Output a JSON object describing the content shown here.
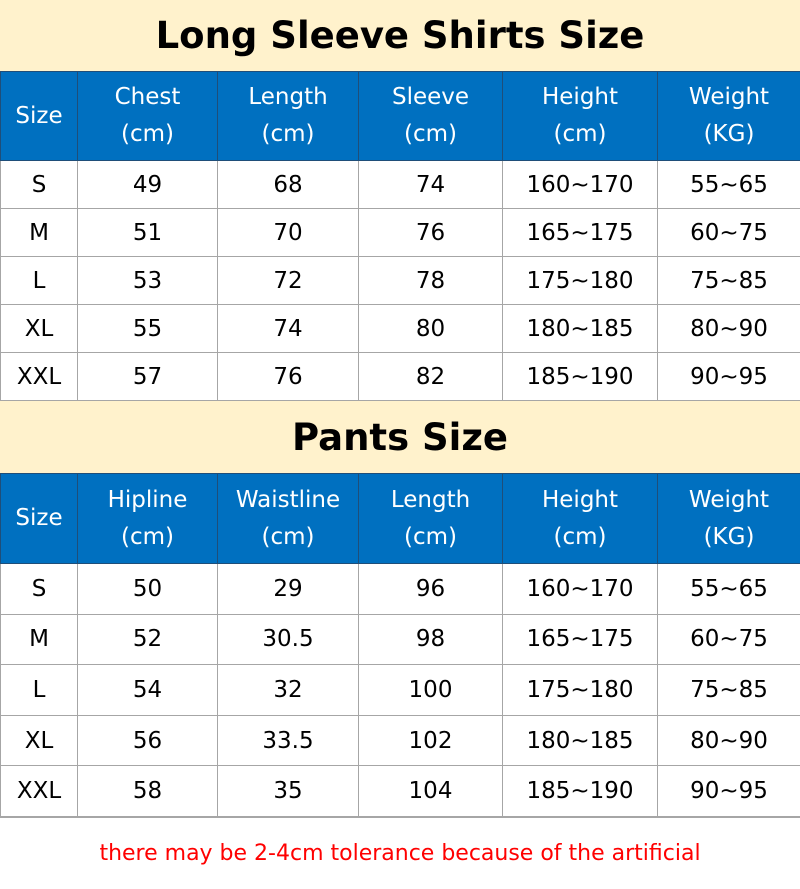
{
  "shirts": {
    "title": "Long Sleeve Shirts Size",
    "headers": [
      [
        "Size",
        ""
      ],
      [
        "Chest",
        "(cm)"
      ],
      [
        "Length",
        "(cm)"
      ],
      [
        "Sleeve",
        "(cm)"
      ],
      [
        "Height",
        "(cm)"
      ],
      [
        "Weight",
        "(KG)"
      ]
    ],
    "rows": [
      [
        "S",
        "49",
        "68",
        "74",
        "160~170",
        "55~65"
      ],
      [
        "M",
        "51",
        "70",
        "76",
        "165~175",
        "60~75"
      ],
      [
        "L",
        "53",
        "72",
        "78",
        "175~180",
        "75~85"
      ],
      [
        "XL",
        "55",
        "74",
        "80",
        "180~185",
        "80~90"
      ],
      [
        "XXL",
        "57",
        "76",
        "82",
        "185~190",
        "90~95"
      ]
    ]
  },
  "pants": {
    "title": "Pants Size",
    "headers": [
      [
        "Size",
        ""
      ],
      [
        "Hipline",
        "(cm)"
      ],
      [
        "Waistline",
        "(cm)"
      ],
      [
        "Length",
        "(cm)"
      ],
      [
        "Height",
        "(cm)"
      ],
      [
        "Weight",
        "(KG)"
      ]
    ],
    "rows": [
      [
        "S",
        "50",
        "29",
        "96",
        "160~170",
        "55~65"
      ],
      [
        "M",
        "52",
        "30.5",
        "98",
        "165~175",
        "60~75"
      ],
      [
        "L",
        "54",
        "32",
        "100",
        "175~180",
        "75~85"
      ],
      [
        "XL",
        "56",
        "33.5",
        "102",
        "180~185",
        "80~90"
      ],
      [
        "XXL",
        "58",
        "35",
        "104",
        "185~190",
        "90~95"
      ]
    ]
  },
  "note": "there may be 2-4cm tolerance because of the artificial"
}
